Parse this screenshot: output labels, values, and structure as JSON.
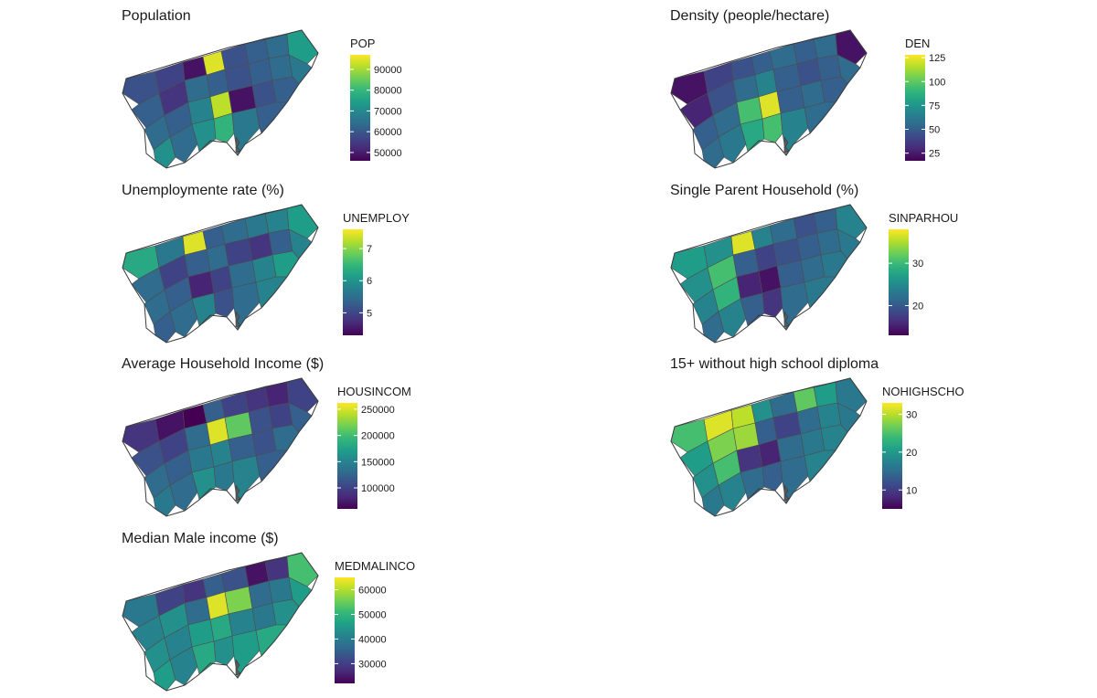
{
  "panels": [
    {
      "id": "pop",
      "title": "Population",
      "legend_title": "POP",
      "ticks": [
        "90000",
        "80000",
        "70000",
        "60000",
        "50000"
      ],
      "tick_values": [
        90000,
        80000,
        70000,
        60000,
        50000
      ],
      "range": [
        46000,
        97000
      ]
    },
    {
      "id": "den",
      "title": "Density (people/hectare)",
      "legend_title": "DEN",
      "ticks": [
        "125",
        "100",
        "75",
        "50",
        "25"
      ],
      "tick_values": [
        125,
        100,
        75,
        50,
        25
      ],
      "range": [
        17,
        128
      ]
    },
    {
      "id": "unemploy",
      "title": "Unemploymente rate (%)",
      "legend_title": "UNEMPLOY",
      "ticks": [
        "7",
        "6",
        "5"
      ],
      "tick_values": [
        7,
        6,
        5
      ],
      "range": [
        4.3,
        7.6
      ]
    },
    {
      "id": "sinparhou",
      "title": "Single Parent Household (%)",
      "legend_title": "SINPARHOU",
      "ticks": [
        "30",
        "20"
      ],
      "tick_values": [
        30,
        20
      ],
      "range": [
        13,
        38
      ]
    },
    {
      "id": "housincom",
      "title": "Average Household Income ($)",
      "legend_title": "HOUSINCOM",
      "ticks": [
        "250000",
        "200000",
        "150000",
        "100000"
      ],
      "tick_values": [
        250000,
        200000,
        150000,
        100000
      ],
      "range": [
        60000,
        262000
      ]
    },
    {
      "id": "nohighscho",
      "title": "15+ without high school diploma",
      "legend_title": "NOHIGHSCHO",
      "ticks": [
        "30",
        "20",
        "10"
      ],
      "tick_values": [
        30,
        20,
        10
      ],
      "range": [
        5,
        33
      ]
    },
    {
      "id": "medmalinco",
      "title": "Median Male income ($)",
      "legend_title": "MEDMALINCO",
      "ticks": [
        "60000",
        "50000",
        "40000",
        "30000"
      ],
      "tick_values": [
        60000,
        50000,
        40000,
        30000
      ],
      "range": [
        22000,
        65000
      ]
    }
  ],
  "colors": {
    "viridis": [
      "#440154",
      "#482878",
      "#3e4989",
      "#31688e",
      "#26828e",
      "#1f9e89",
      "#35b779",
      "#6ece58",
      "#b5de2b",
      "#fde725"
    ],
    "border": "#4d4d4d",
    "background": "#ffffff"
  }
}
